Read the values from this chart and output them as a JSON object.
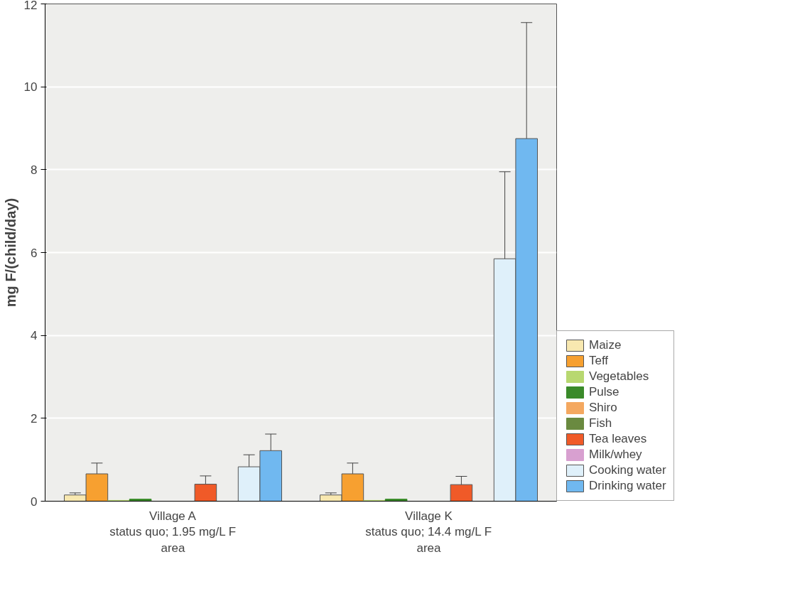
{
  "chart_data": {
    "type": "bar",
    "ylabel": "mg F/(child/day)",
    "categories": [
      "Village A\nstatus quo; 1.95 mg/L F\narea",
      "Village K\nstatus quo; 14.4 mg/L F\narea"
    ],
    "series": [
      {
        "name": "Maize",
        "color": "#f8e8b0",
        "values": [
          0.15,
          0.15
        ],
        "errors": [
          0.05,
          0.05
        ]
      },
      {
        "name": "Teff",
        "color": "#f7a030",
        "values": [
          0.66,
          0.66
        ],
        "errors": [
          0.26,
          0.26
        ]
      },
      {
        "name": "Vegetables",
        "color": "#b8d870",
        "values": [
          0.02,
          0.02
        ]
      },
      {
        "name": "Pulse",
        "color": "#3a8a2a",
        "values": [
          0.05,
          0.05
        ]
      },
      {
        "name": "Shiro",
        "color": "#f4a860",
        "values": [
          0,
          0
        ]
      },
      {
        "name": "Fish",
        "color": "#6a8a40",
        "values": [
          0,
          0
        ]
      },
      {
        "name": "Tea leaves",
        "color": "#f05a28",
        "values": [
          0.41,
          0.4
        ],
        "errors": [
          0.2,
          0.2
        ]
      },
      {
        "name": "Milk/whey",
        "color": "#d8a0d0",
        "values": [
          0,
          0
        ]
      },
      {
        "name": "Cooking water",
        "color": "#dff0fa",
        "values": [
          0.83,
          5.85
        ],
        "errors": [
          0.29,
          2.1
        ]
      },
      {
        "name": "Drinking water",
        "color": "#70b8f0",
        "values": [
          1.22,
          8.75
        ],
        "errors": [
          0.4,
          2.8
        ]
      }
    ],
    "ylim": [
      0,
      12
    ],
    "yticks": [
      0,
      2,
      4,
      6,
      8,
      10,
      12
    ],
    "grid": "y",
    "legend": "bottom right"
  }
}
